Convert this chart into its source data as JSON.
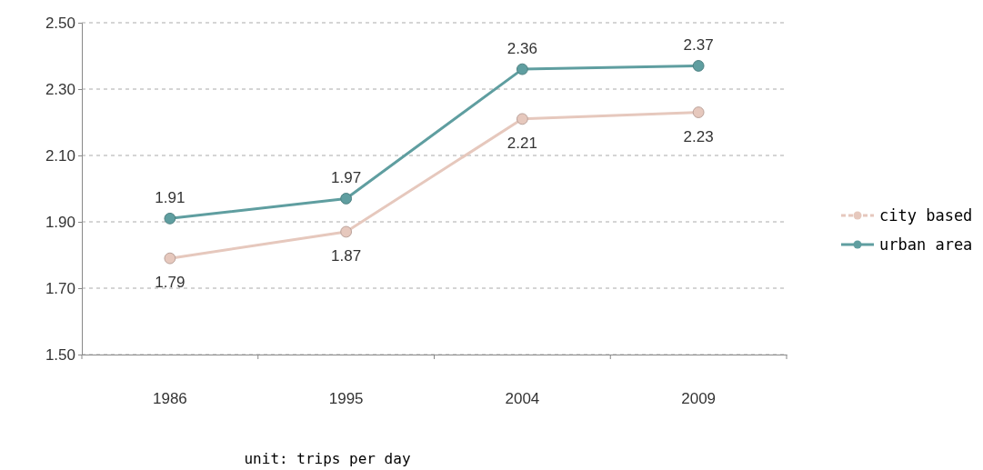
{
  "chart_data": {
    "type": "line",
    "categories": [
      "1986",
      "1995",
      "2004",
      "2009"
    ],
    "series": [
      {
        "name": "city based",
        "color": "#e6c8bd",
        "values": [
          1.79,
          1.87,
          2.21,
          2.23
        ]
      },
      {
        "name": "urban area",
        "color": "#5f9ea0",
        "values": [
          1.91,
          1.97,
          2.36,
          2.37
        ]
      }
    ],
    "ylim": [
      1.5,
      2.5
    ],
    "yticks": [
      {
        "value": 1.5,
        "label": "1.50"
      },
      {
        "value": 1.7,
        "label": "1.70"
      },
      {
        "value": 1.9,
        "label": "1.90"
      },
      {
        "value": 2.1,
        "label": "2.10"
      },
      {
        "value": 2.3,
        "label": "2.30"
      },
      {
        "value": 2.5,
        "label": "2.50"
      }
    ],
    "grid": "y",
    "legend": "right",
    "marker": "circle",
    "data_labels": true,
    "annotations": [
      "unit: trips per day"
    ]
  }
}
